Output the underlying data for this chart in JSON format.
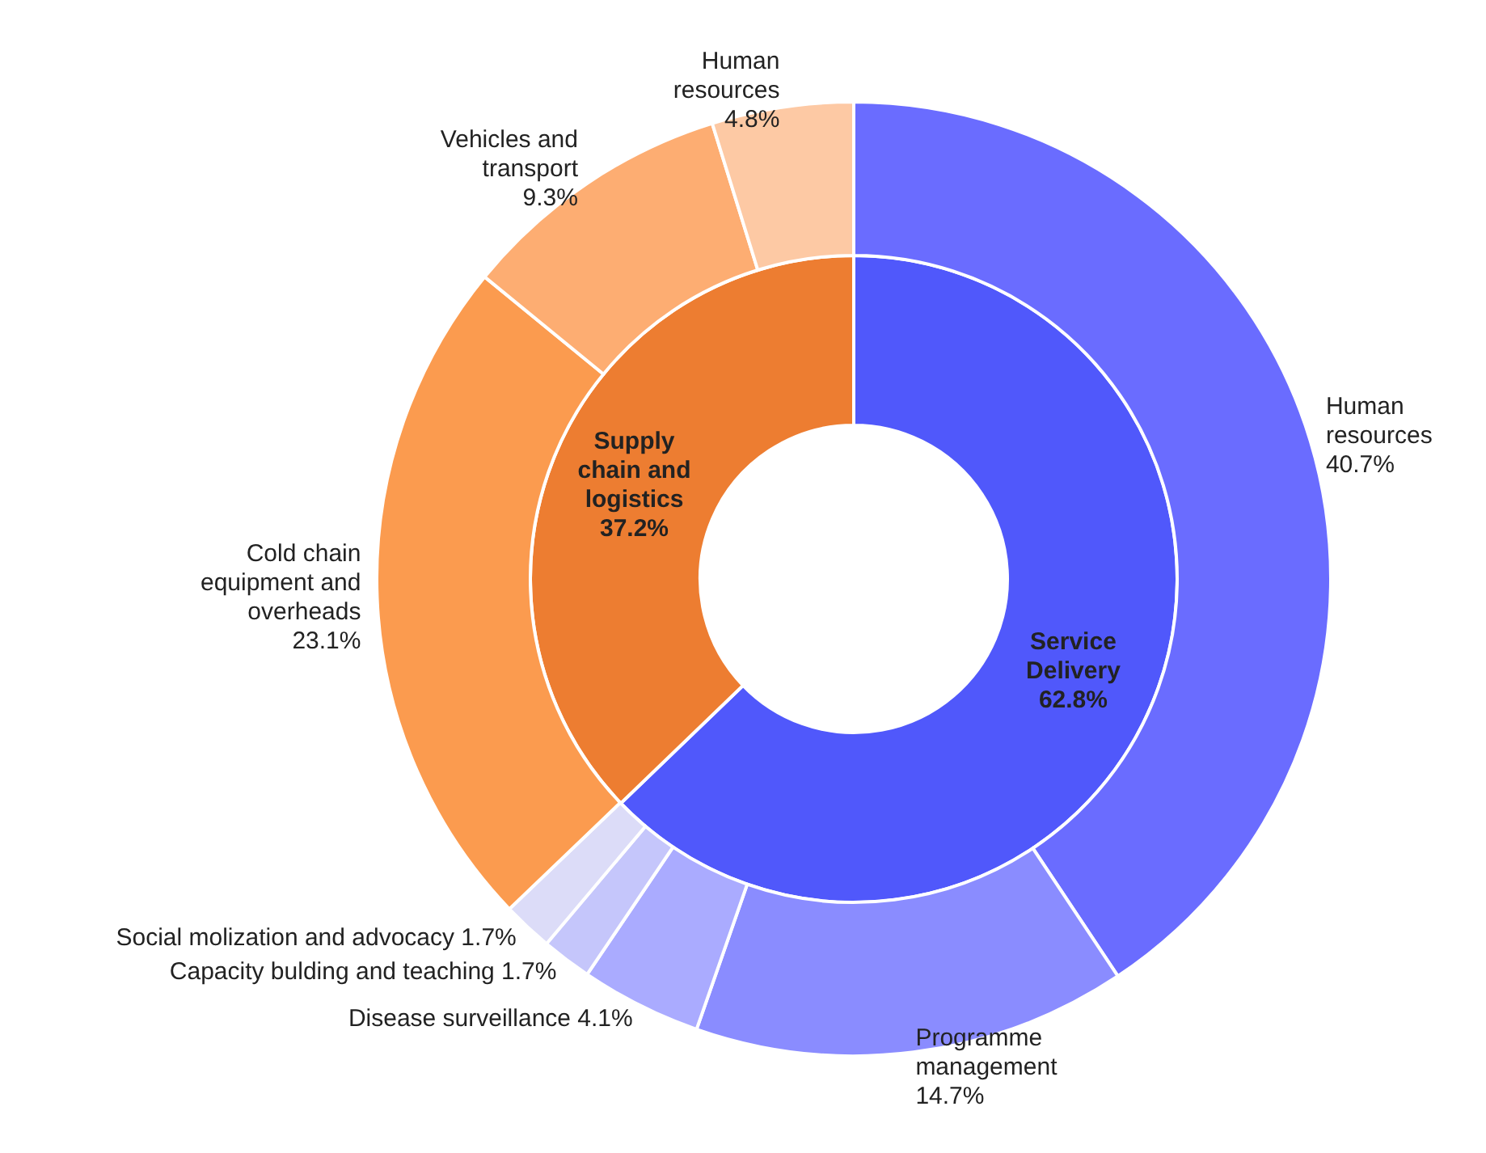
{
  "chart_data": [
    {
      "type": "donut",
      "categories": [
        "Service Delivery",
        "Supply chain and logistics"
      ],
      "values": [
        62.8,
        37.2
      ],
      "value_labels": [
        "62.8%",
        "37.2%"
      ],
      "colors": [
        "#5058fb",
        "#ed7d31"
      ],
      "data_labels": true
    },
    {
      "type": "donut",
      "categories": [
        "Human resources",
        "Programme management",
        "Disease surveillance",
        "Capacity bulding and teaching",
        "Social molization and advocacy",
        "Cold chain equipment and overheads",
        "Vehicles and transport",
        "Human resources"
      ],
      "values": [
        40.7,
        14.7,
        4.1,
        1.7,
        1.7,
        23.1,
        9.3,
        4.8
      ],
      "value_labels": [
        "40.7%",
        "14.7%",
        "4.1%",
        "1.7%",
        "1.7%",
        "23.1%",
        "9.3%",
        "4.8%"
      ],
      "colors": [
        "#6a6cff",
        "#8a8cff",
        "#aaabff",
        "#c5c6fb",
        "#dcdcf8",
        "#fb9b4f",
        "#fdad72",
        "#fdc9a4"
      ],
      "data_labels": true
    }
  ]
}
